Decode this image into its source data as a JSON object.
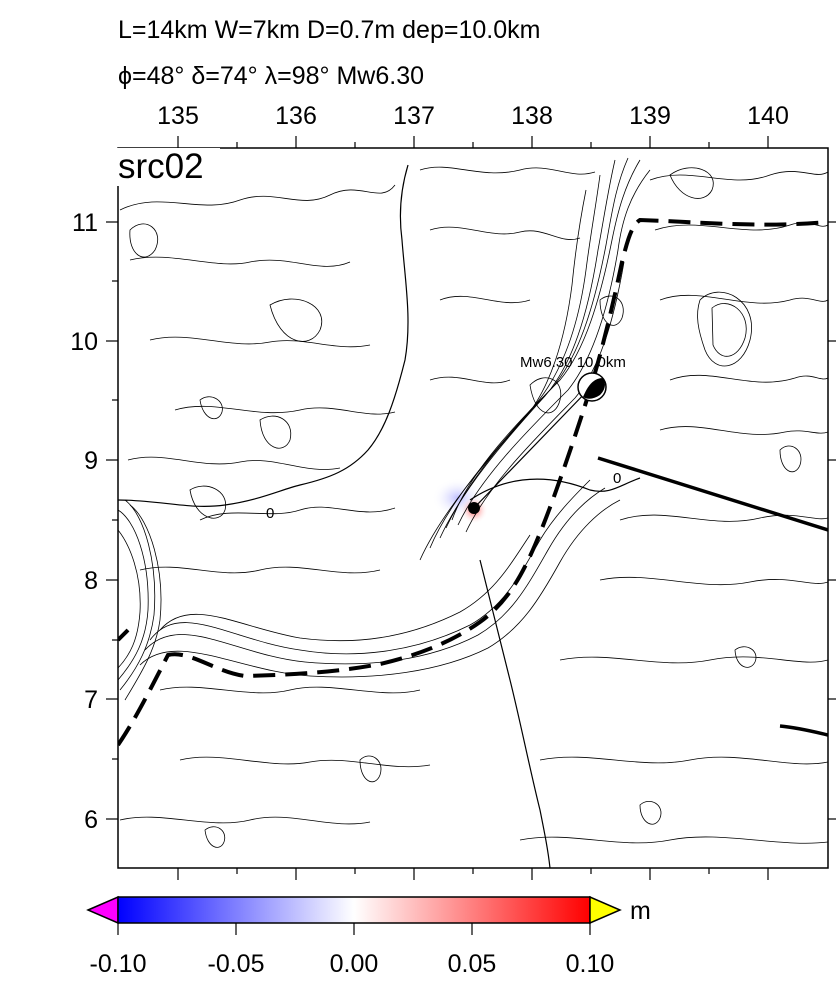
{
  "header": {
    "line1": "L=14km W=7km D=0.7m dep=10.0km",
    "line2": "ϕ=48° δ=74° λ=98° Mw6.30"
  },
  "map": {
    "panel_label": "src02",
    "lon_ticks": [
      "135",
      "136",
      "137",
      "138",
      "139",
      "140"
    ],
    "lat_ticks": [
      "11",
      "10",
      "9",
      "8",
      "7",
      "6"
    ],
    "lon_range": [
      134.5,
      140.5
    ],
    "lat_range": [
      5.6,
      11.3
    ],
    "epicenter_label": "Mw6.30  10.0km",
    "contour_label": "0"
  },
  "colorbar": {
    "ticks": [
      "-0.10",
      "-0.05",
      "0.00",
      "0.05",
      "0.10"
    ],
    "unit": "m",
    "colors": {
      "min": "#0000ff",
      "mid": "#ffffff",
      "max": "#ff0000",
      "below": "#ff00ff",
      "above": "#ffff00"
    }
  }
}
